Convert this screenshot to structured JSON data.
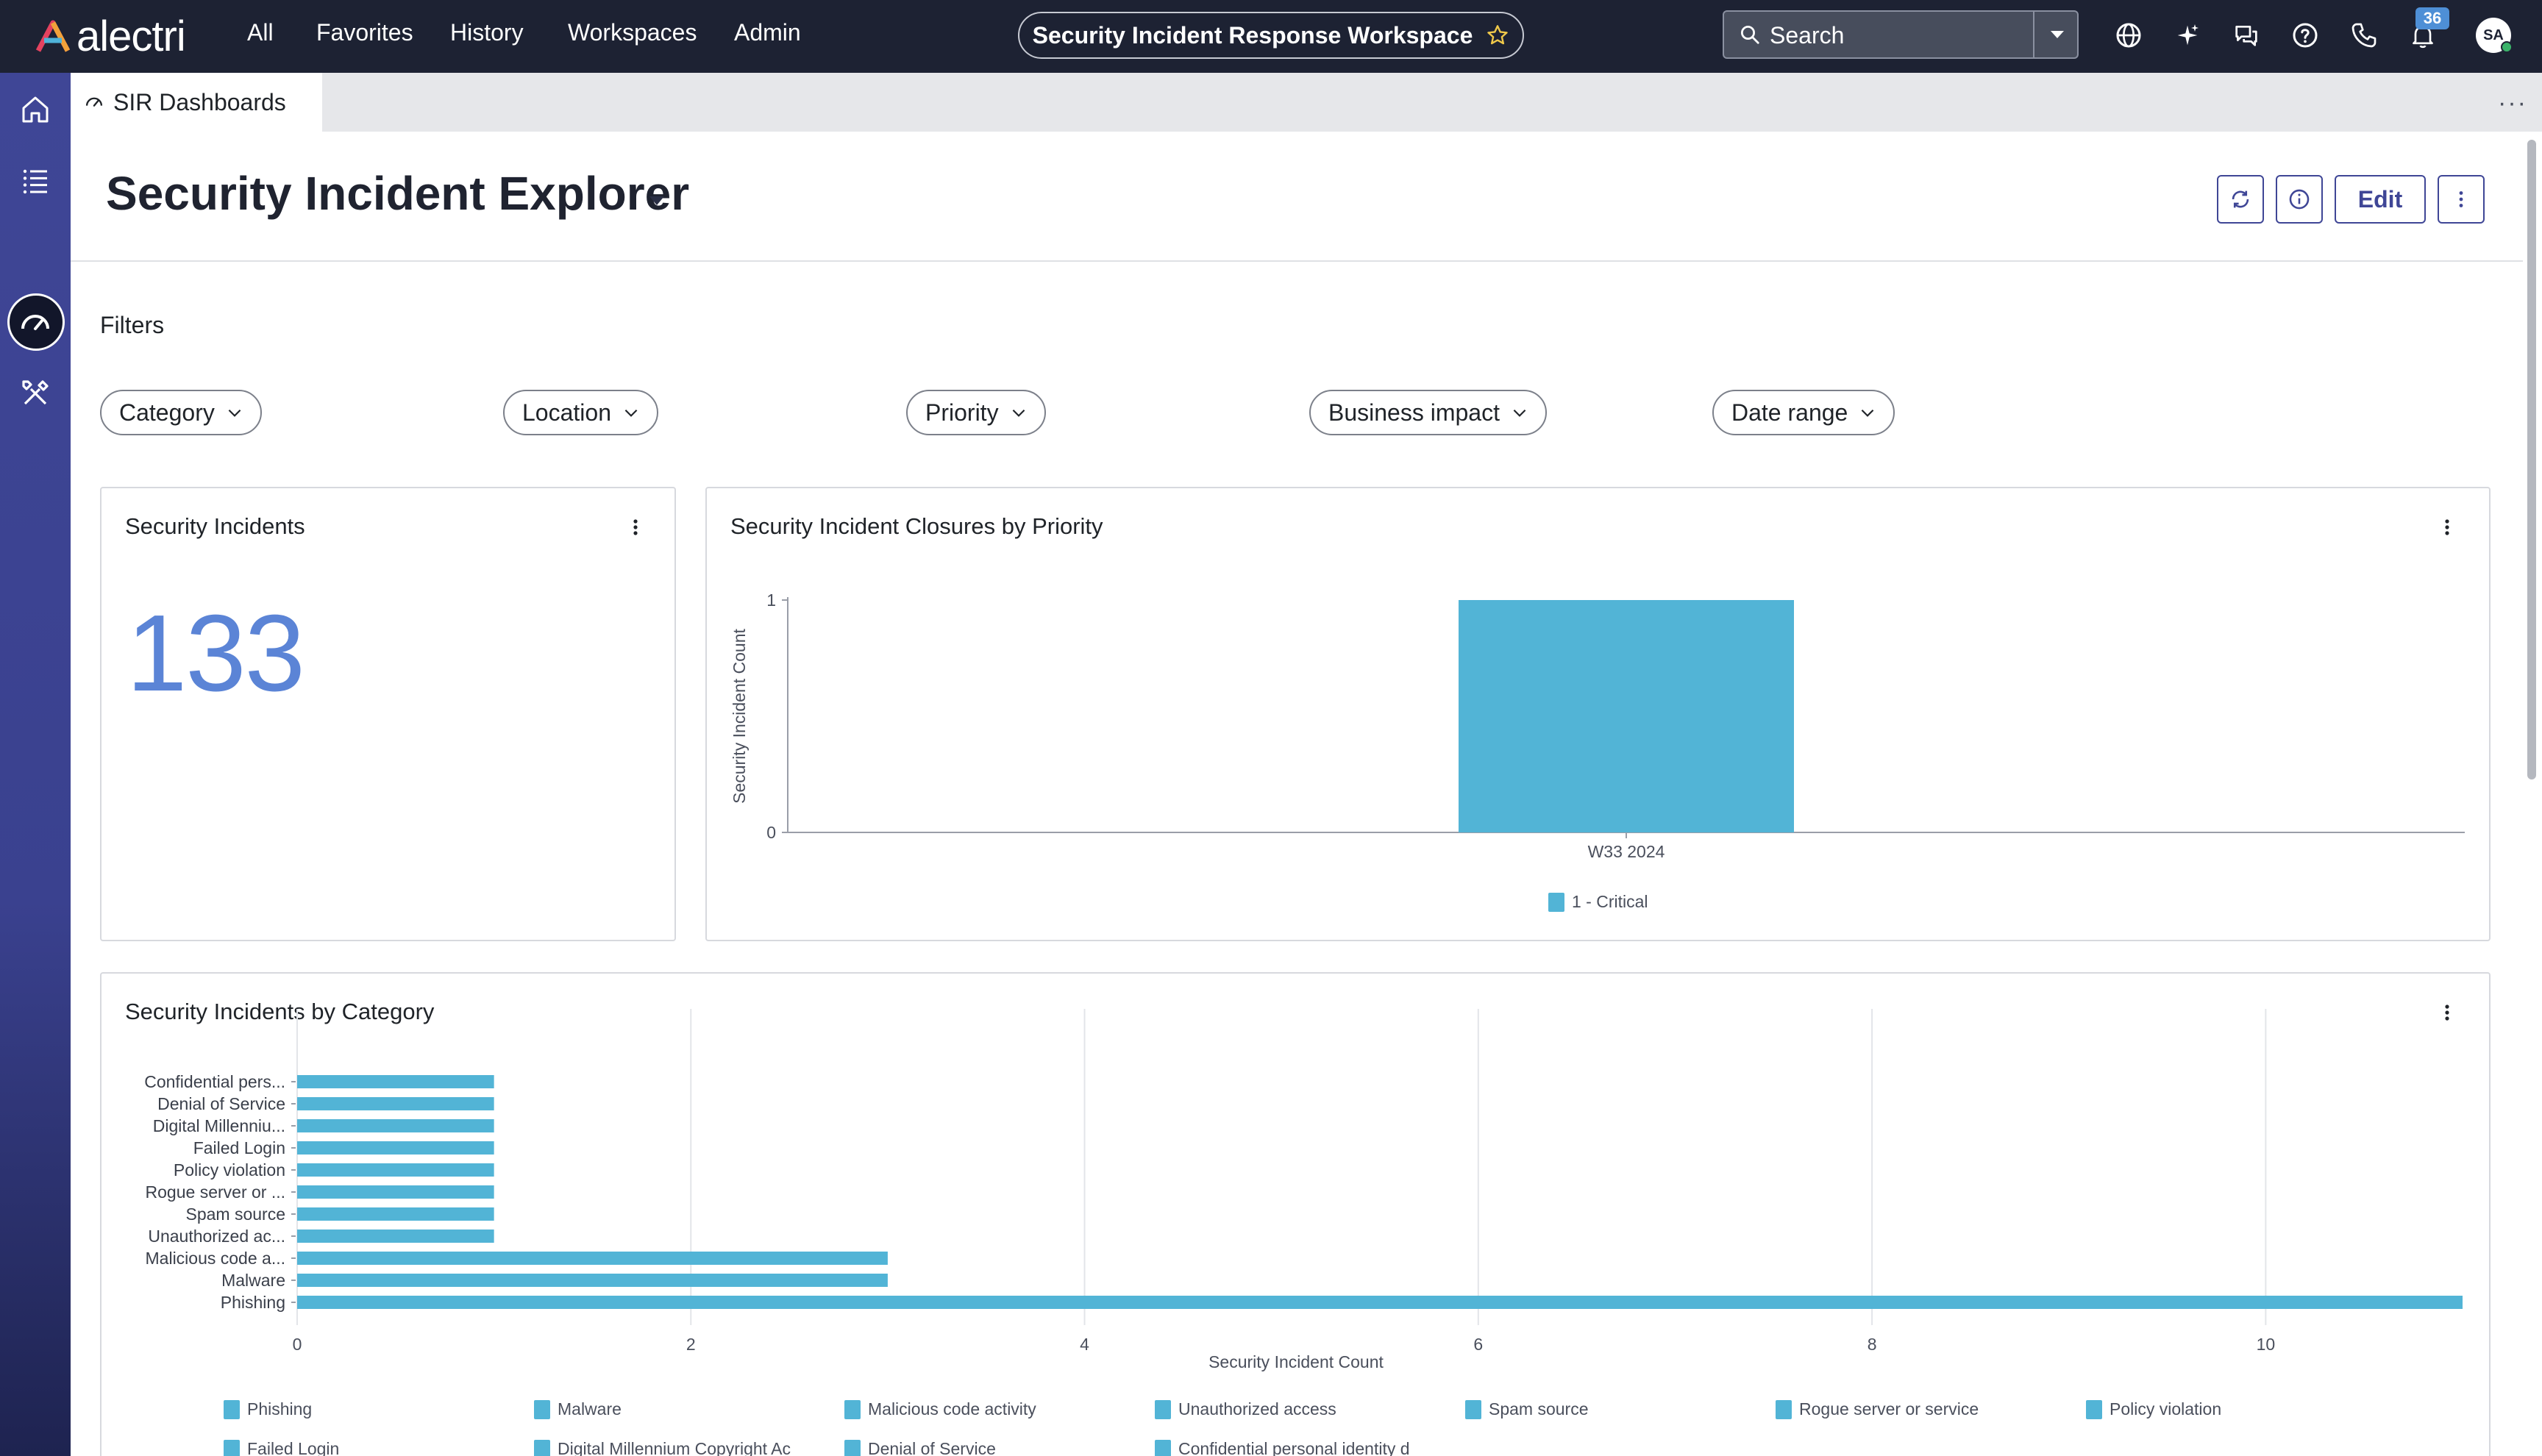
{
  "topbar": {
    "brand": "alectri",
    "nav": [
      "All",
      "Favorites",
      "History",
      "Workspaces",
      "Admin"
    ],
    "workspace_title": "Security Incident Response Workspace",
    "search_label": "Search",
    "notification_count": "36",
    "avatar_initials": "SA",
    "icons": [
      "globe-icon",
      "sparkle-icon",
      "chat-icon",
      "help-icon",
      "phone-icon",
      "bell-icon"
    ]
  },
  "rail": {
    "icons": [
      "home-icon",
      "list-icon",
      "dashboard-icon",
      "tools-icon"
    ],
    "active": "dashboard-icon"
  },
  "tabs": [
    {
      "label": "SIR Dashboards",
      "icon": "gauge-icon"
    }
  ],
  "header": {
    "title": "Security Incident Explorer",
    "edit_label": "Edit",
    "buttons": [
      "refresh-icon",
      "info-icon",
      "more-vertical-icon"
    ]
  },
  "filters": {
    "label": "Filters",
    "chips": [
      "Category",
      "Location",
      "Priority",
      "Business impact",
      "Date range"
    ]
  },
  "cards": {
    "incidents": {
      "title": "Security Incidents",
      "value": "133"
    },
    "closures": {
      "title": "Security Incident Closures by Priority"
    },
    "by_category": {
      "title": "Security Incidents by Category"
    }
  },
  "colors": {
    "accent": "#3f4696",
    "bar": "#52b4d6",
    "big_number": "#5b84d6",
    "topbar": "#1d2233"
  },
  "chart_data": [
    {
      "type": "bar",
      "title": "Security Incident Closures by Priority",
      "categories": [
        "W33 2024"
      ],
      "series": [
        {
          "name": "1 - Critical",
          "values": [
            1
          ]
        }
      ],
      "ylabel": "Security Incident Count",
      "xlabel": "",
      "ylim": [
        0,
        1
      ],
      "yticks": [
        0,
        1
      ],
      "legend": "bottom",
      "grid": false
    },
    {
      "type": "bar",
      "orientation": "horizontal",
      "title": "Security Incidents by Category",
      "categories": [
        "Confidential pers...",
        "Denial of Service",
        "Digital Millenniu...",
        "Failed Login",
        "Policy violation",
        "Rogue server or ...",
        "Spam source",
        "Unauthorized ac...",
        "Malicious code a...",
        "Malware",
        "Phishing"
      ],
      "values": [
        1,
        1,
        1,
        1,
        1,
        1,
        1,
        1,
        3,
        3,
        11
      ],
      "xlabel": "Security Incident Count",
      "xlim": [
        0,
        11
      ],
      "xticks": [
        0,
        2,
        4,
        6,
        8,
        10
      ],
      "grid": true,
      "legend": "bottom",
      "legend_items": [
        "Phishing",
        "Malware",
        "Malicious code activity",
        "Unauthorized access",
        "Spam source",
        "Rogue server or service",
        "Policy violation",
        "Failed Login",
        "Digital Millennium Copyright Ac",
        "Denial of Service",
        "Confidential personal identity d"
      ]
    }
  ]
}
